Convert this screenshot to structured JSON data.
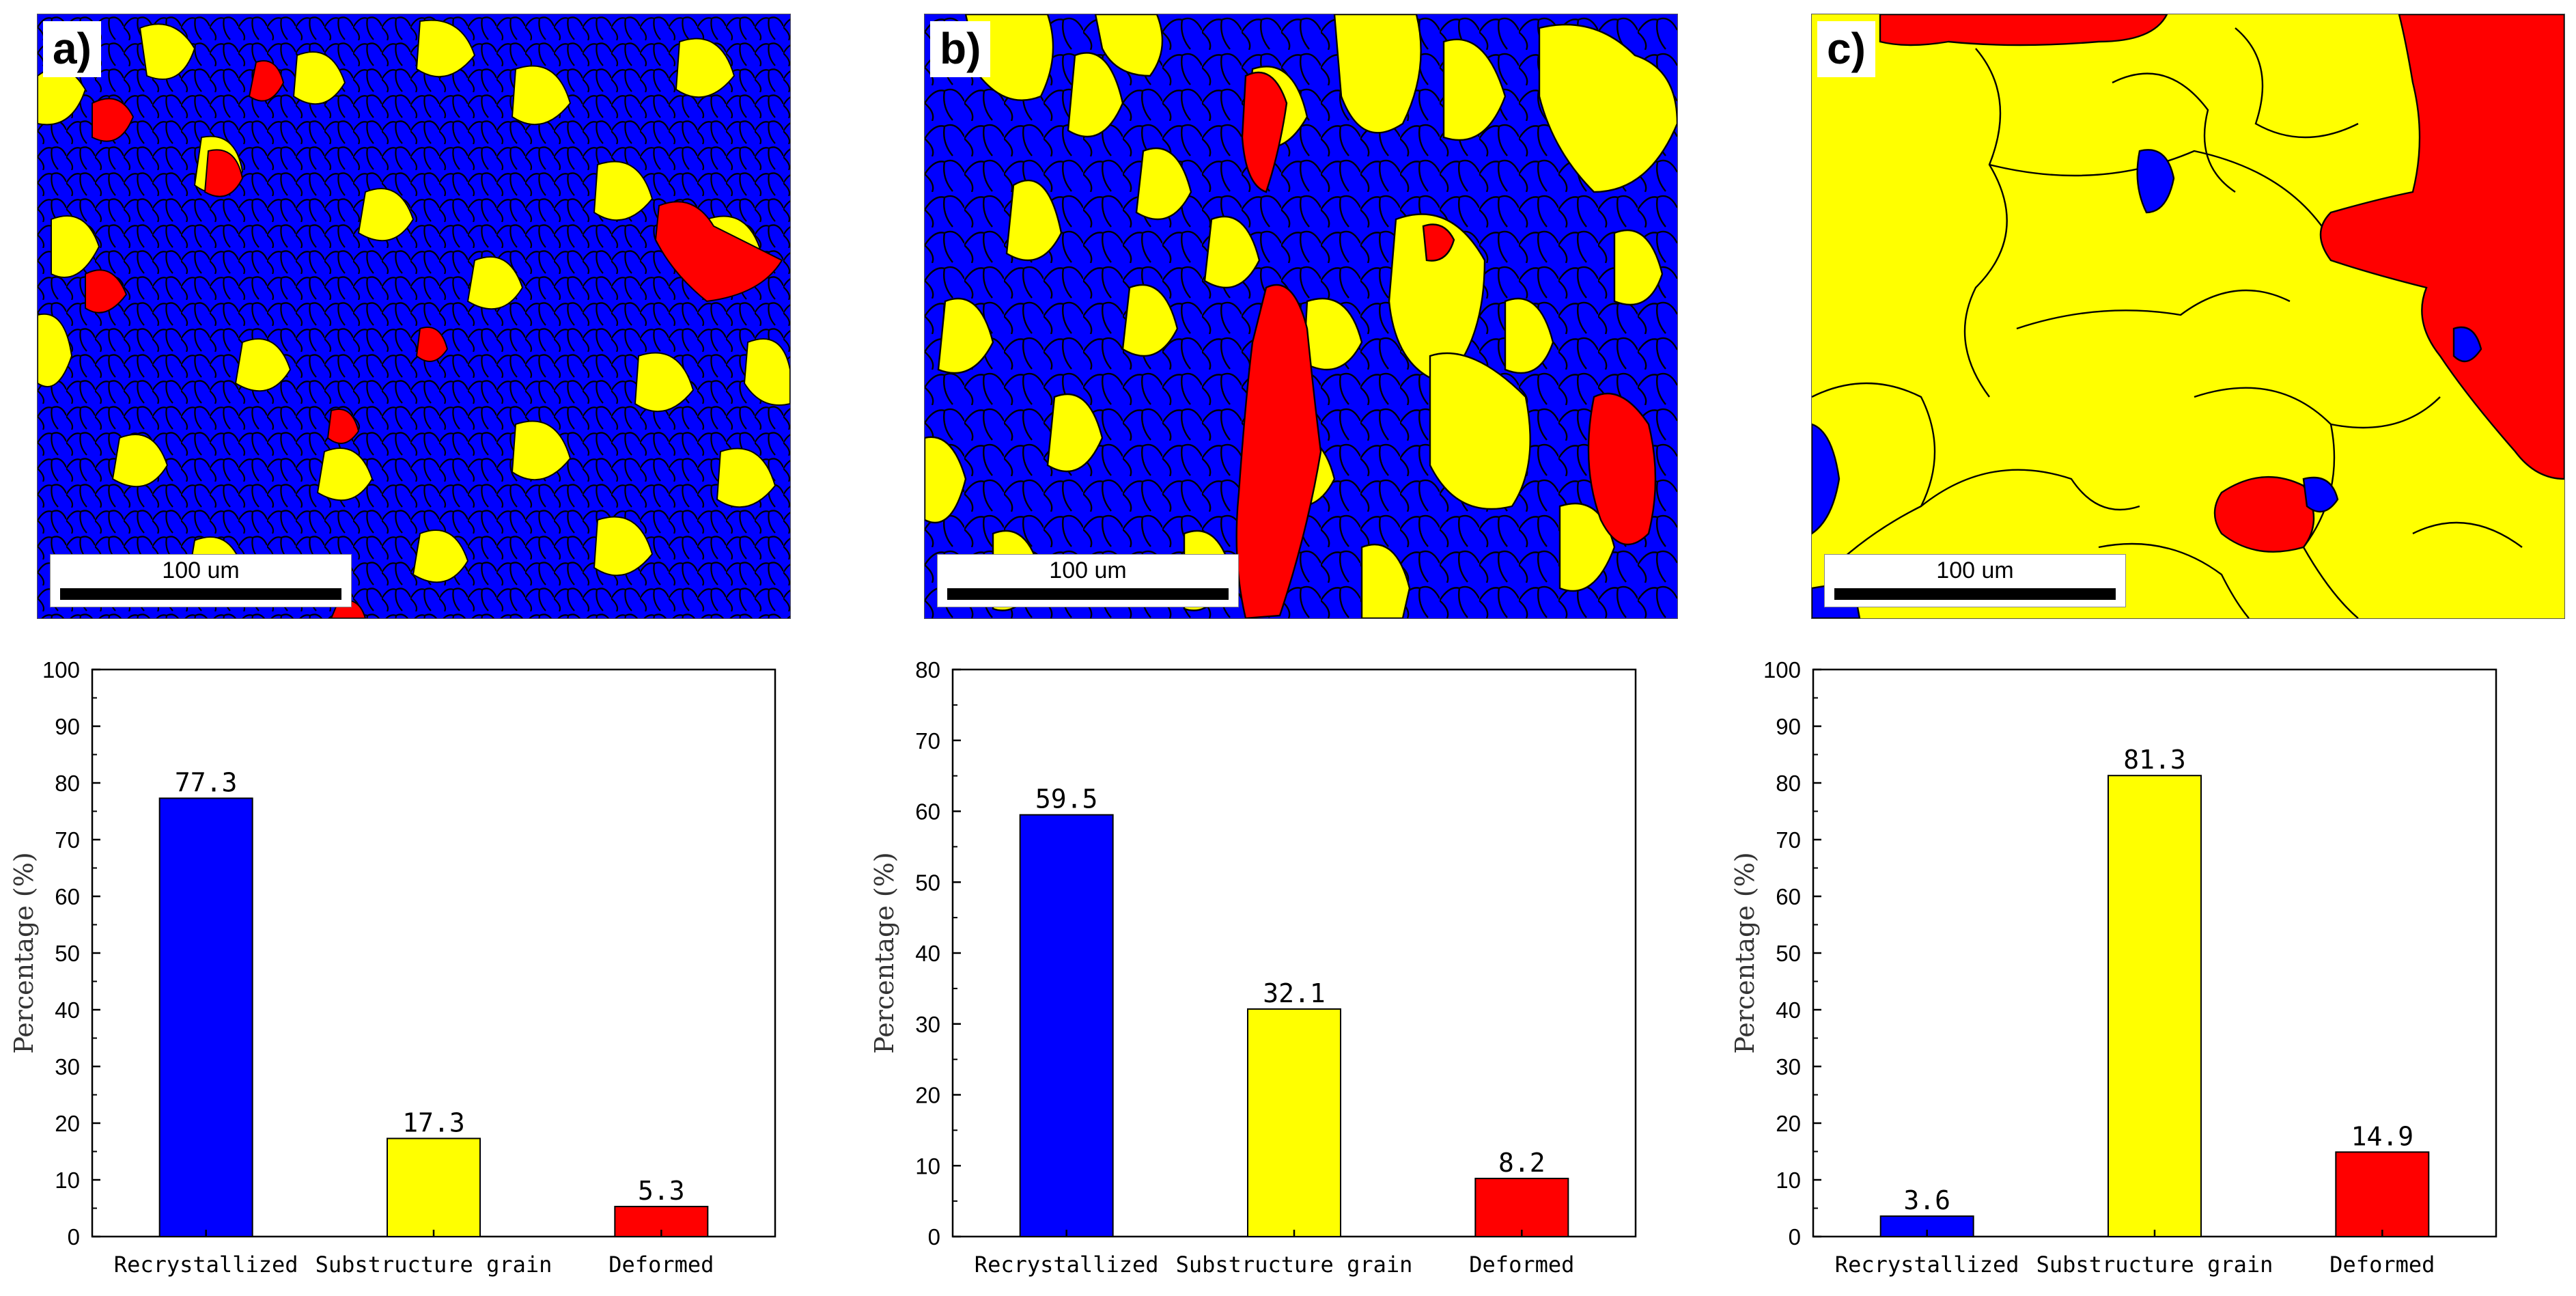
{
  "colors": {
    "recrystallized": "#0000ff",
    "substructure": "#ffff00",
    "deformed": "#ff0000"
  },
  "panels": [
    {
      "label": "a)",
      "scalebar": "100 um"
    },
    {
      "label": "b)",
      "scalebar": "100 um"
    },
    {
      "label": "c)",
      "scalebar": "100 um"
    }
  ],
  "chart_data": [
    {
      "type": "bar",
      "categories": [
        "Recrystallized",
        "Substructure grain",
        "Deformed"
      ],
      "values": [
        77.3,
        17.3,
        5.3
      ],
      "value_labels": [
        "77.3",
        "17.3",
        "5.3"
      ],
      "title": "",
      "xlabel": "",
      "ylabel": "Percentage (%)",
      "ylim": [
        0,
        100
      ],
      "yticks": [
        0,
        10,
        20,
        30,
        40,
        50,
        60,
        70,
        80,
        90,
        100
      ]
    },
    {
      "type": "bar",
      "categories": [
        "Recrystallized",
        "Substructure grain",
        "Deformed"
      ],
      "values": [
        59.5,
        32.1,
        8.2
      ],
      "value_labels": [
        "59.5",
        "32.1",
        "8.2"
      ],
      "title": "",
      "xlabel": "",
      "ylabel": "Percentage (%)",
      "ylim": [
        0,
        80
      ],
      "yticks": [
        0,
        10,
        20,
        30,
        40,
        50,
        60,
        70,
        80
      ]
    },
    {
      "type": "bar",
      "categories": [
        "Recrystallized",
        "Substructure grain",
        "Deformed"
      ],
      "values": [
        3.6,
        81.3,
        14.9
      ],
      "value_labels": [
        "3.6",
        "81.3",
        "14.9"
      ],
      "title": "",
      "xlabel": "",
      "ylabel": "Percentage (%)",
      "ylim": [
        0,
        100
      ],
      "yticks": [
        0,
        10,
        20,
        30,
        40,
        50,
        60,
        70,
        80,
        90,
        100
      ]
    }
  ]
}
